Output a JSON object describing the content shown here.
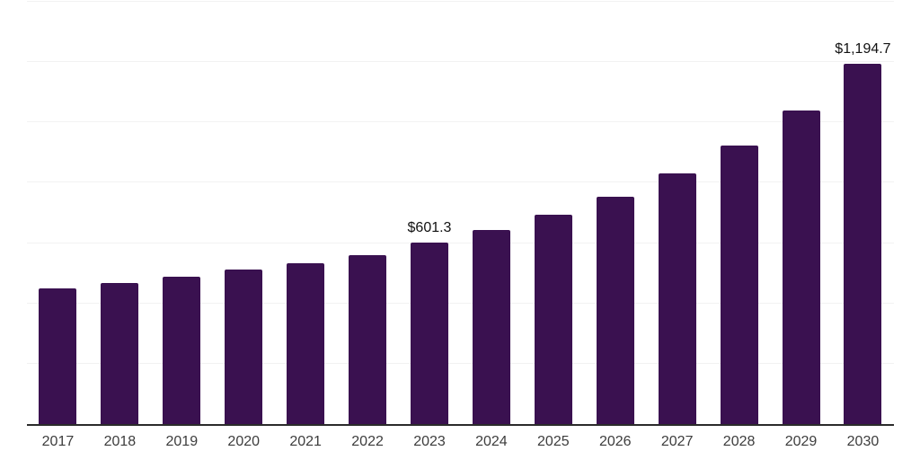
{
  "chart_data": {
    "type": "bar",
    "title": "",
    "xlabel": "",
    "ylabel": "",
    "categories": [
      "2017",
      "2018",
      "2019",
      "2020",
      "2021",
      "2022",
      "2023",
      "2024",
      "2025",
      "2026",
      "2027",
      "2028",
      "2029",
      "2030"
    ],
    "values": [
      449,
      468,
      490,
      513,
      534,
      561,
      601.3,
      642,
      693,
      755,
      832,
      923,
      1041,
      1194.7
    ],
    "data_labels": {
      "2023": "$601.3",
      "2030": "$1,194.7"
    },
    "ylim": [
      0,
      1400
    ],
    "grid_step": 200,
    "grid": "horizontal",
    "legend_position": "none",
    "y_axis_labels_visible": false,
    "bar_color": "#3a1150",
    "axis_line_color": "#2b2b2b",
    "gridline_color": "#f2f2f2",
    "tick_label_color": "#3d3d3d",
    "value_label_color": "#111111"
  }
}
